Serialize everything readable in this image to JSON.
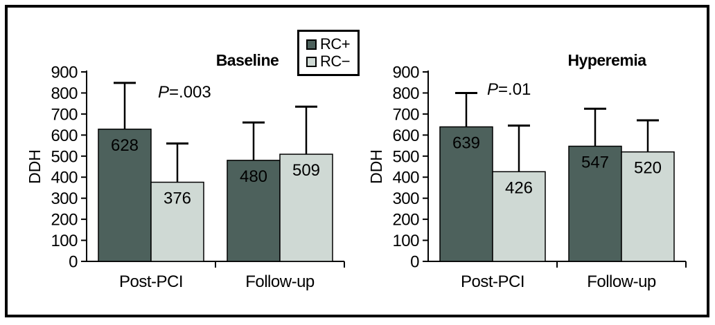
{
  "legend": {
    "items": [
      {
        "label": "RC+",
        "color": "#4d615c"
      },
      {
        "label": "RC−",
        "color": "#cfd9d4"
      }
    ]
  },
  "chart_data": [
    {
      "type": "bar",
      "title": "Baseline",
      "p_text": "P=.003",
      "ylabel": "DDH",
      "ylim": [
        0,
        900
      ],
      "ytick_step": 100,
      "grid": false,
      "legend_position": "top-center",
      "categories": [
        "Post-PCI",
        "Follow-up"
      ],
      "series": [
        {
          "name": "RC+",
          "color": "#4d615c",
          "values": [
            628,
            480
          ],
          "error_bar_top": [
            848,
            660
          ]
        },
        {
          "name": "RC−",
          "color": "#cfd9d4",
          "values": [
            376,
            509
          ],
          "error_bar_top": [
            560,
            735
          ]
        }
      ]
    },
    {
      "type": "bar",
      "title": "Hyperemia",
      "p_text": "P=.01",
      "ylabel": "DDH",
      "ylim": [
        0,
        900
      ],
      "ytick_step": 100,
      "grid": false,
      "legend_position": "top-center",
      "categories": [
        "Post-PCI",
        "Follow-up"
      ],
      "series": [
        {
          "name": "RC+",
          "color": "#4d615c",
          "values": [
            639,
            547
          ],
          "error_bar_top": [
            800,
            725
          ]
        },
        {
          "name": "RC−",
          "color": "#cfd9d4",
          "values": [
            426,
            520
          ],
          "error_bar_top": [
            645,
            670
          ]
        }
      ]
    }
  ]
}
